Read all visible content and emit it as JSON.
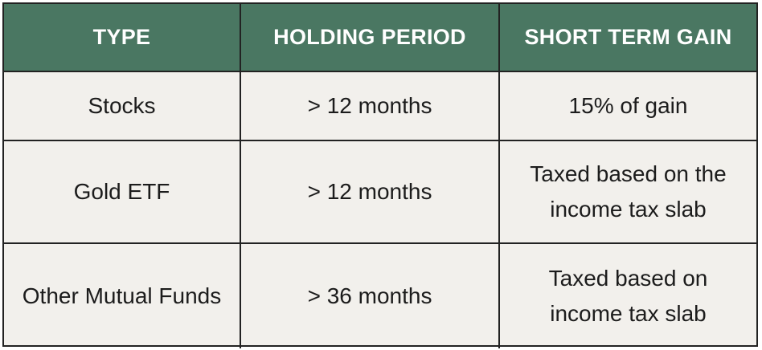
{
  "table": {
    "headers": [
      "TYPE",
      "HOLDING PERIOD",
      "SHORT TERM GAIN"
    ],
    "rows": [
      {
        "type": "Stocks",
        "holding_period": "> 12 months",
        "short_term_gain": "15% of gain"
      },
      {
        "type": "Gold ETF",
        "holding_period": "> 12 months",
        "short_term_gain": "Taxed based on the income tax slab"
      },
      {
        "type": "Other Mutual Funds",
        "holding_period": "> 36 months",
        "short_term_gain": "Taxed based on income tax slab"
      }
    ]
  },
  "colors": {
    "header_bg": "#4a7762",
    "header_text": "#ffffff",
    "cell_bg": "#f2f0ec",
    "border": "#222222"
  }
}
